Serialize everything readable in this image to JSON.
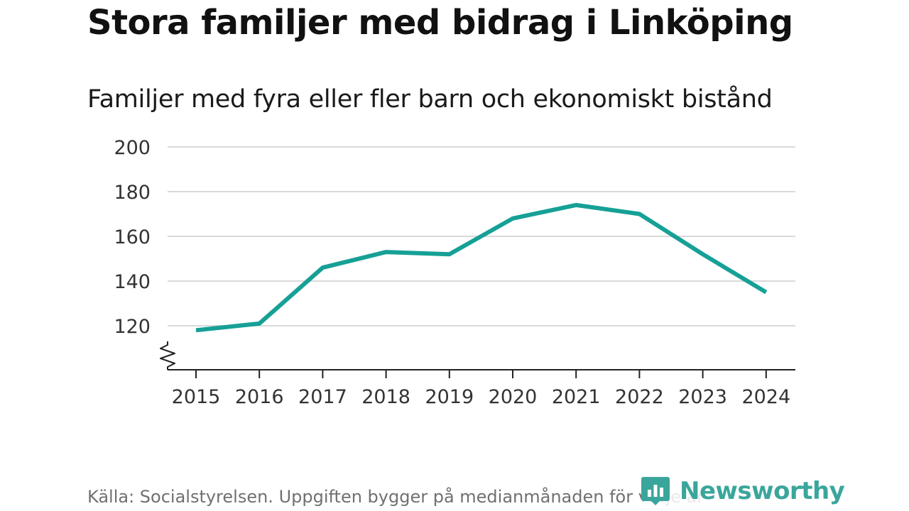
{
  "header": {
    "title": "Stora familjer med bidrag i Linköping"
  },
  "chart_data": {
    "type": "line",
    "title": "Stora familjer med bidrag i Linköping",
    "subtitle": "Familjer med fyra eller fler barn och ekonomiskt bistånd",
    "xlabel": "",
    "ylabel": "",
    "x": [
      "2015",
      "2016",
      "2017",
      "2018",
      "2019",
      "2020",
      "2021",
      "2022",
      "2023",
      "2024"
    ],
    "series": [
      {
        "name": "Familjer med fyra eller fler barn och ekonomiskt bistånd",
        "values": [
          118,
          121,
          146,
          153,
          152,
          168,
          174,
          170,
          152,
          135
        ],
        "color": "#16a096"
      }
    ],
    "yticks": [
      "120",
      "140",
      "160",
      "180",
      "200"
    ],
    "ylim": [
      100,
      200
    ],
    "grid": true,
    "legend": "none",
    "axis_break": true
  },
  "footer": {
    "source": "Källa: Socialstyrelsen. Uppgiften bygger på medianmånaden för varje år",
    "brand": "Newsworthy"
  },
  "colors": {
    "line": "#16a096",
    "grid": "#d9d9d9",
    "axis": "#222222",
    "brand": "#3aa69b"
  }
}
